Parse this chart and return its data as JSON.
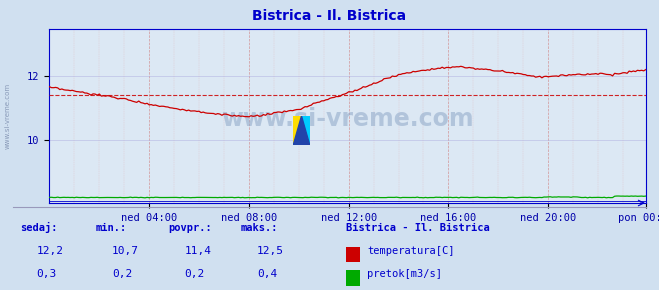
{
  "title": "Bistrica - Il. Bistrica",
  "title_color": "#0000cc",
  "bg_color": "#d0e0f0",
  "plot_bg_color": "#dce8f4",
  "xlabel_color": "#0000aa",
  "ylabel_color": "#0000aa",
  "axis_color": "#0000cc",
  "temp_color": "#cc0000",
  "flow_color": "#00aa00",
  "avg_line_color": "#cc0000",
  "xlim": [
    0,
    287
  ],
  "ylim": [
    8.0,
    13.5
  ],
  "yticks": [
    10,
    12
  ],
  "xtick_labels": [
    "ned 04:00",
    "ned 08:00",
    "ned 12:00",
    "ned 16:00",
    "ned 20:00",
    "pon 00:00"
  ],
  "xtick_positions": [
    48,
    96,
    144,
    192,
    240,
    287
  ],
  "avg_temp": 11.4,
  "watermark": "www.si-vreme.com",
  "legend_title": "Bistrica - Il. Bistrica",
  "legend_items": [
    "temperatura[C]",
    "pretok[m3/s]"
  ],
  "legend_colors": [
    "#cc0000",
    "#00aa00"
  ],
  "table_headers": [
    "sedaj:",
    "min.:",
    "povpr.:",
    "maks.:"
  ],
  "table_temp": [
    "12,2",
    "10,7",
    "11,4",
    "12,5"
  ],
  "table_flow": [
    "0,3",
    "0,2",
    "0,2",
    "0,4"
  ],
  "sidebar_text": "www.si-vreme.com"
}
